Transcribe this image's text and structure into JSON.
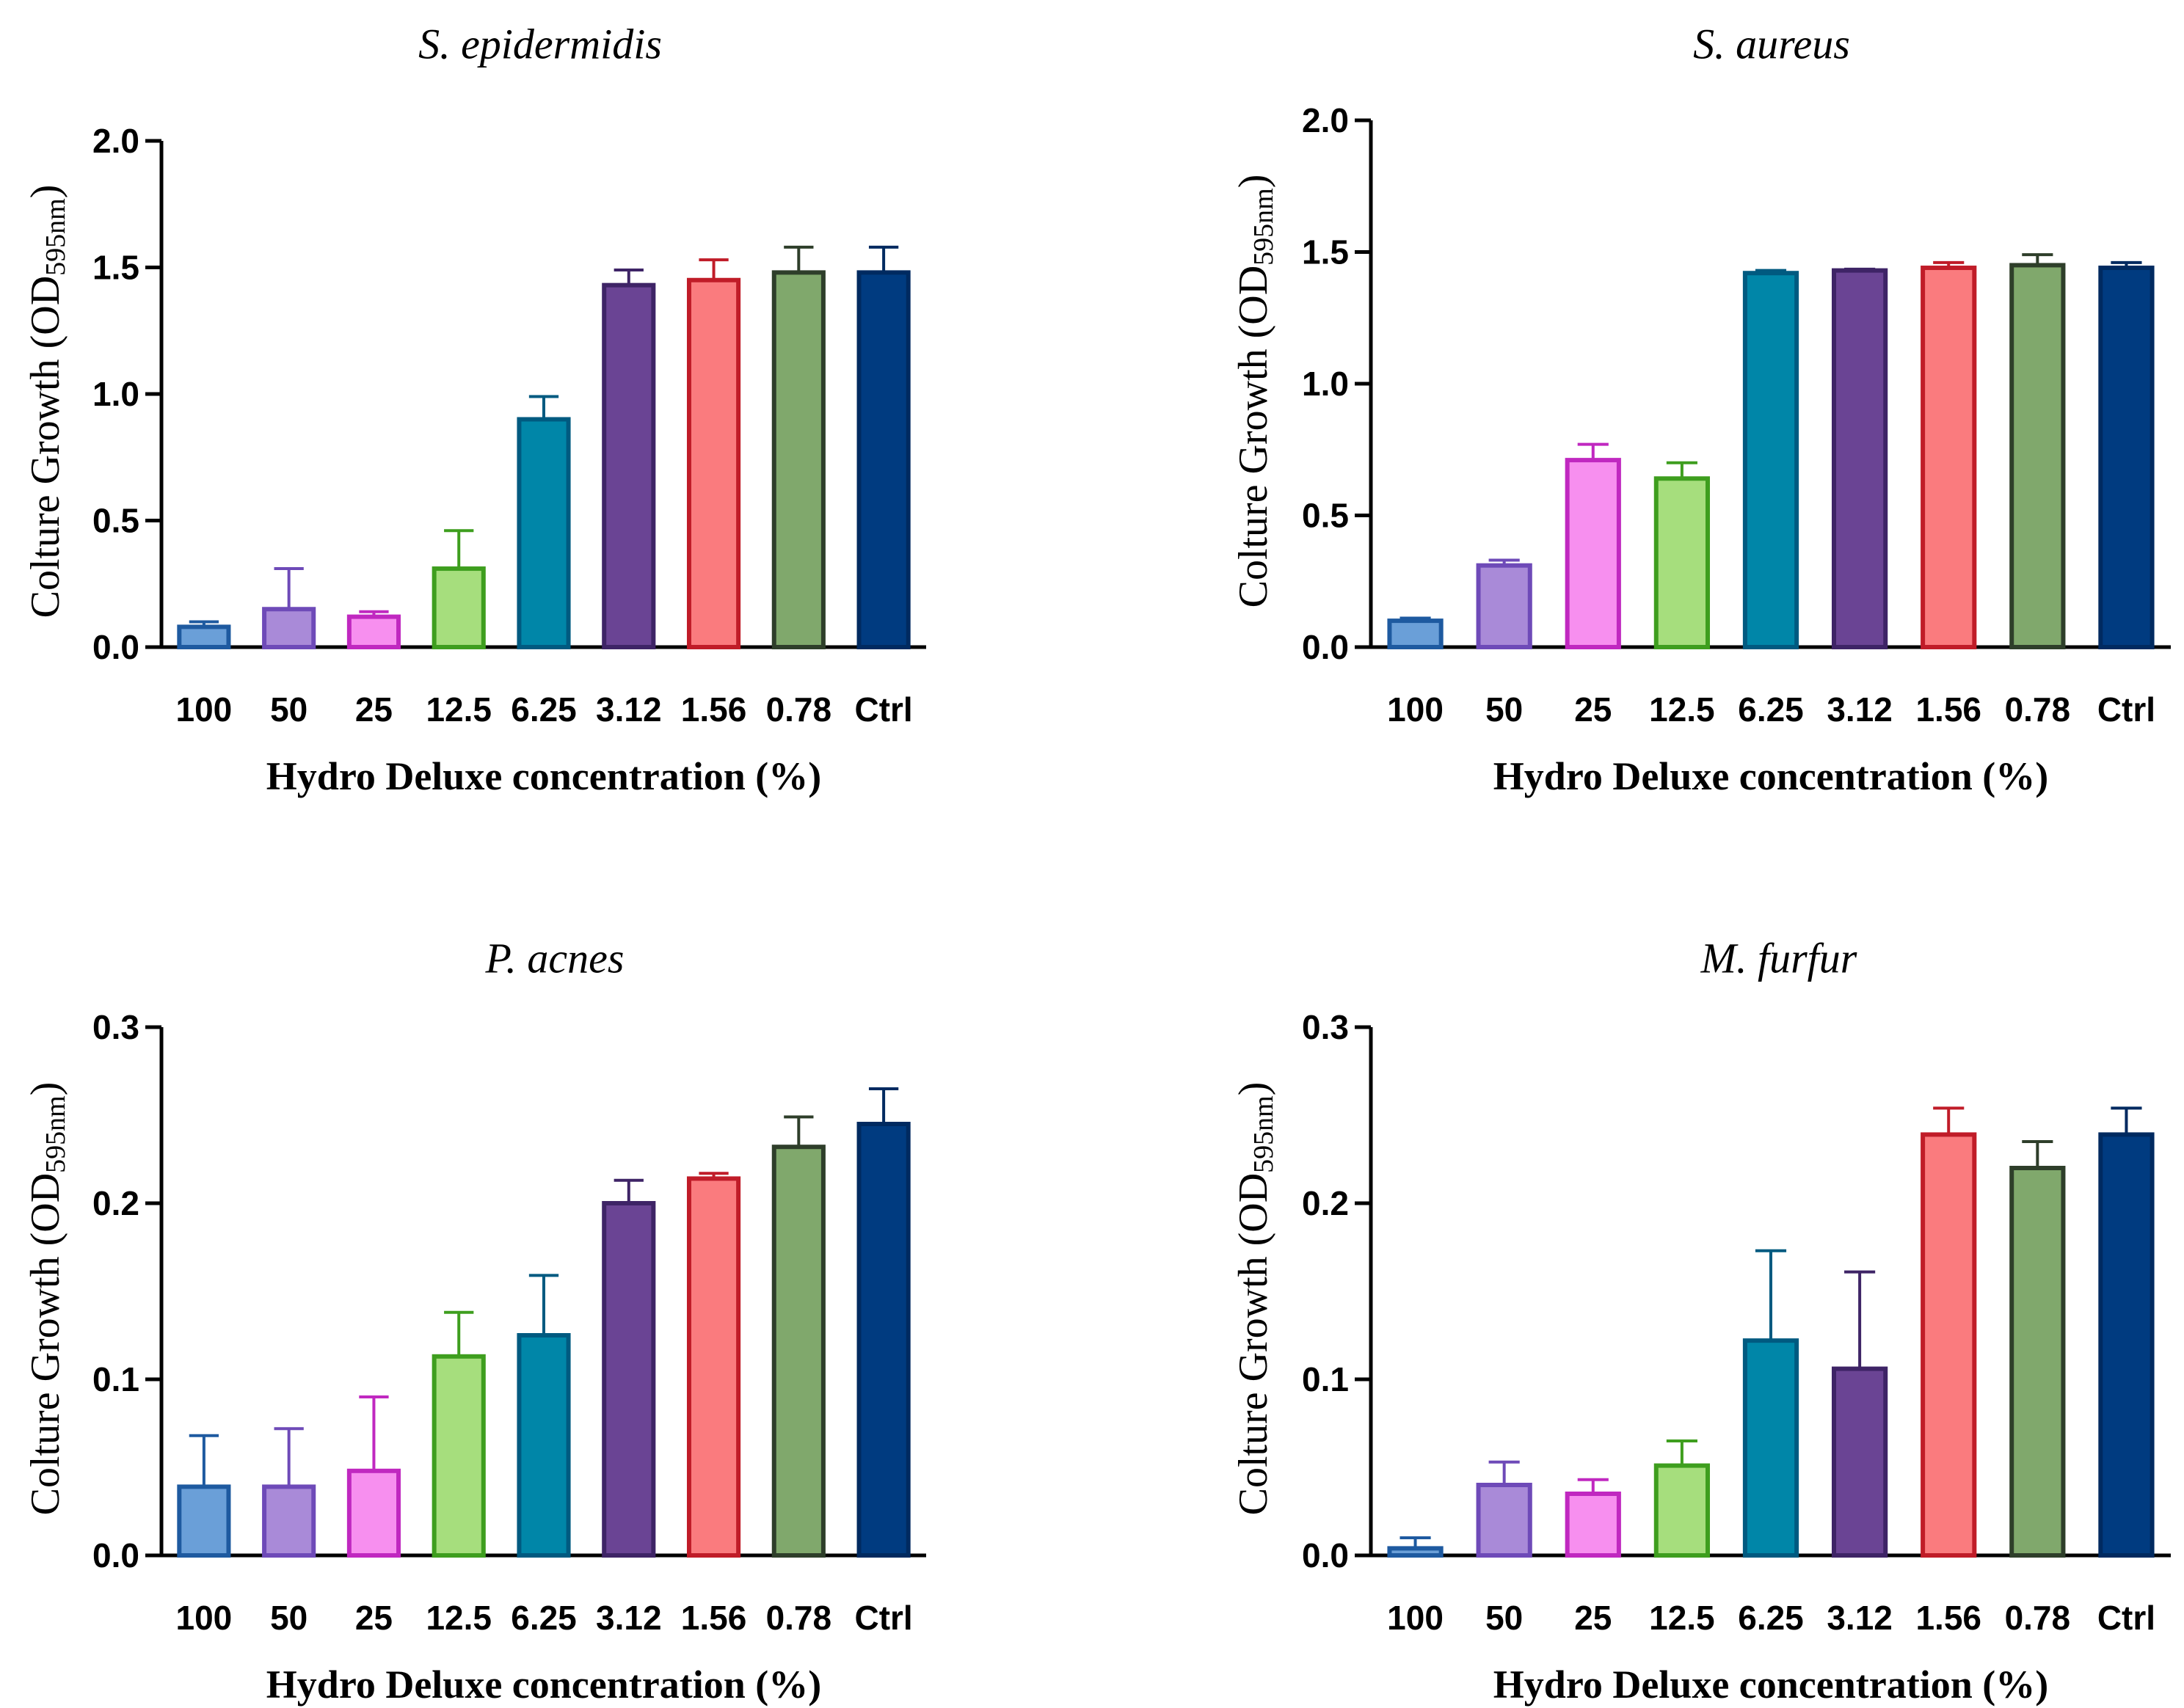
{
  "palette": {
    "fills": [
      "#6a9fd8",
      "#a98ad8",
      "#f78fef",
      "#a6de7d",
      "#0086a8",
      "#6a4494",
      "#fa7b7e",
      "#80a86c",
      "#003b80"
    ],
    "strokes": [
      "#1e5aa0",
      "#6e4ab8",
      "#c028c0",
      "#3e9e1e",
      "#005a80",
      "#3e2466",
      "#c01c28",
      "#2e3e2a",
      "#002a60"
    ]
  },
  "chart_data": [
    {
      "type": "bar",
      "title": "S. epidermidis",
      "xlabel": "Hydro Deluxe concentration (%)",
      "ylabel": "Colture Growth (OD",
      "ylabel_sub": "595nm",
      "ylabel_end": ")",
      "categories": [
        "100",
        "50",
        "25",
        "12.5",
        "6.25",
        "3.12",
        "1.56",
        "0.78",
        "Ctrl"
      ],
      "values": [
        0.08,
        0.15,
        0.12,
        0.31,
        0.9,
        1.43,
        1.45,
        1.48,
        1.48
      ],
      "errors": [
        0.02,
        0.16,
        0.02,
        0.15,
        0.09,
        0.06,
        0.08,
        0.1,
        0.1
      ],
      "ylim": [
        0,
        2.0
      ],
      "yticks": [
        "0.0",
        "0.5",
        "1.0",
        "1.5",
        "2.0"
      ]
    },
    {
      "type": "bar",
      "title": "S. aureus",
      "xlabel": "Hydro Deluxe concentration (%)",
      "ylabel": "Colture Growth (OD",
      "ylabel_sub": "595nm",
      "ylabel_end": ")",
      "categories": [
        "100",
        "50",
        "25",
        "12.5",
        "6.25",
        "3.12",
        "1.56",
        "0.78",
        "Ctrl"
      ],
      "values": [
        0.1,
        0.31,
        0.71,
        0.64,
        1.42,
        1.43,
        1.44,
        1.45,
        1.44
      ],
      "errors": [
        0.01,
        0.02,
        0.06,
        0.06,
        0.01,
        0.005,
        0.02,
        0.04,
        0.02
      ],
      "ylim": [
        0,
        2.0
      ],
      "yticks": [
        "0.0",
        "0.5",
        "1.0",
        "1.5",
        "2.0"
      ]
    },
    {
      "type": "bar",
      "title": "P. acnes",
      "xlabel": "Hydro Deluxe concentration (%)",
      "ylabel": "Colture Growth (OD",
      "ylabel_sub": "595nm",
      "ylabel_end": ")",
      "categories": [
        "100",
        "50",
        "25",
        "12.5",
        "6.25",
        "3.12",
        "1.56",
        "0.78",
        "Ctrl"
      ],
      "values": [
        0.039,
        0.039,
        0.048,
        0.113,
        0.125,
        0.2,
        0.214,
        0.232,
        0.245
      ],
      "errors": [
        0.029,
        0.033,
        0.042,
        0.025,
        0.034,
        0.013,
        0.003,
        0.017,
        0.02
      ],
      "ylim": [
        0,
        0.3
      ],
      "yticks": [
        "0.0",
        "0.1",
        "0.2",
        "0.3"
      ]
    },
    {
      "type": "bar",
      "title": "M. furfur",
      "xlabel": "Hydro Deluxe concentration (%)",
      "ylabel": "Colture Growth (OD",
      "ylabel_sub": "595nm",
      "ylabel_end": ")",
      "categories": [
        "100",
        "50",
        "25",
        "12.5",
        "6.25",
        "3.12",
        "1.56",
        "0.78",
        "Ctrl"
      ],
      "values": [
        0.004,
        0.04,
        0.035,
        0.051,
        0.122,
        0.106,
        0.239,
        0.22,
        0.239
      ],
      "errors": [
        0.006,
        0.013,
        0.008,
        0.014,
        0.051,
        0.055,
        0.015,
        0.015,
        0.015
      ],
      "ylim": [
        0,
        0.3
      ],
      "yticks": [
        "0.0",
        "0.1",
        "0.2",
        "0.3"
      ]
    }
  ]
}
